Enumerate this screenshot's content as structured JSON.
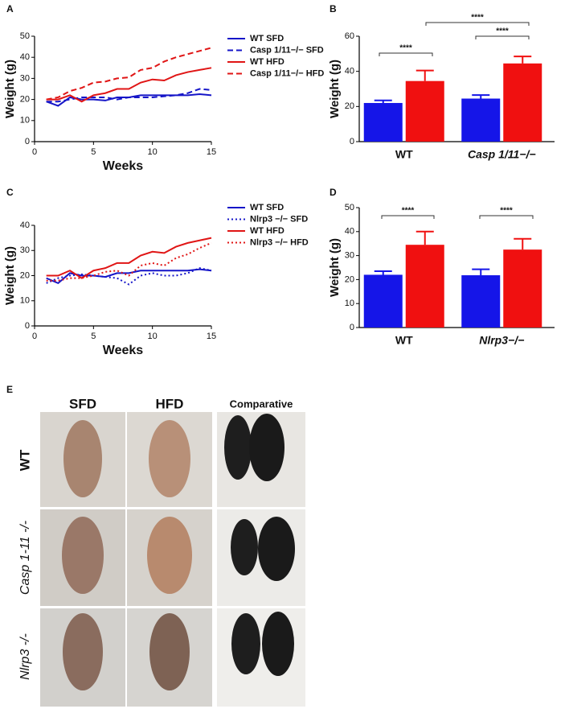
{
  "chart_data": [
    {
      "type": "line",
      "panel": "A",
      "ylabel": "Weight (g)",
      "xlabel": "Weeks",
      "x": [
        1,
        2,
        3,
        4,
        5,
        6,
        7,
        8,
        9,
        10,
        11,
        12,
        13,
        14,
        15
      ],
      "xlim": [
        0,
        15
      ],
      "xticks": [
        0,
        5,
        10,
        15
      ],
      "ylim": [
        0,
        50
      ],
      "yticks": [
        0,
        10,
        20,
        30,
        40,
        50
      ],
      "series": [
        {
          "name": "WT SFD",
          "color": "#1515c8",
          "dash": "solid",
          "values": [
            19,
            17,
            21,
            20,
            20,
            19.5,
            21,
            21,
            22,
            22,
            22,
            22,
            22,
            22.5,
            22
          ]
        },
        {
          "name": "Casp 1/11−/− SFD",
          "color": "#1515c8",
          "dash": "dashed",
          "values": [
            19,
            19,
            20,
            21,
            21,
            21,
            20,
            21,
            21,
            21,
            21.5,
            22,
            23,
            25,
            24.5
          ]
        },
        {
          "name": "WT HFD",
          "color": "#e01515",
          "dash": "solid",
          "values": [
            20,
            20,
            22,
            19,
            22,
            23,
            25,
            25,
            28,
            29.5,
            29,
            31.5,
            33,
            34,
            35
          ]
        },
        {
          "name": "Casp 1/11−/− HFD",
          "color": "#e01515",
          "dash": "dashed",
          "values": [
            20,
            21,
            24,
            25.5,
            28,
            28.5,
            30,
            30.5,
            34,
            35,
            38,
            40,
            41.5,
            43,
            44.5
          ]
        }
      ]
    },
    {
      "type": "bar",
      "panel": "B",
      "ylabel": "Weight (g)",
      "categories": [
        "WT",
        "Casp 1/11−/−"
      ],
      "ylim": [
        0,
        60
      ],
      "yticks": [
        0,
        20,
        40,
        60
      ],
      "series": [
        {
          "color": "#1515e8",
          "values": [
            22,
            24.5
          ],
          "errors": [
            1.5,
            2
          ]
        },
        {
          "color": "#f01010",
          "values": [
            34.5,
            44.5
          ],
          "errors": [
            6,
            4
          ]
        }
      ],
      "annotations": [
        "****",
        "****",
        "****"
      ]
    },
    {
      "type": "line",
      "panel": "C",
      "ylabel": "Weight (g)",
      "xlabel": "Weeks",
      "x": [
        1,
        2,
        3,
        4,
        5,
        6,
        7,
        8,
        9,
        10,
        11,
        12,
        13,
        14,
        15
      ],
      "xlim": [
        0,
        15
      ],
      "xticks": [
        0,
        5,
        10,
        15
      ],
      "ylim": [
        0,
        40
      ],
      "yticks": [
        0,
        10,
        20,
        30,
        40
      ],
      "series": [
        {
          "name": "WT SFD",
          "color": "#1515c8",
          "dash": "solid",
          "values": [
            19,
            17,
            21,
            20,
            20,
            19.5,
            21,
            21,
            22,
            22,
            22,
            22,
            22,
            22.5,
            22
          ]
        },
        {
          "name": "Nlrp3 −/− SFD",
          "color": "#1515c8",
          "dash": "dotted",
          "values": [
            17,
            19,
            20,
            20.5,
            20,
            19.5,
            19,
            16.5,
            20,
            21,
            20,
            20,
            21,
            23,
            22
          ]
        },
        {
          "name": "WT HFD",
          "color": "#e01515",
          "dash": "solid",
          "values": [
            20,
            20,
            22,
            19,
            22,
            23,
            25,
            25,
            28,
            29.5,
            29,
            31.5,
            33,
            34,
            35
          ]
        },
        {
          "name": "Nlrp3 −/− HFD",
          "color": "#e01515",
          "dash": "dotted",
          "values": [
            18,
            18,
            19,
            19,
            20,
            21.5,
            22,
            20,
            24,
            25,
            24,
            27,
            28.5,
            31,
            33
          ]
        }
      ]
    },
    {
      "type": "bar",
      "panel": "D",
      "ylabel": "Weight (g)",
      "categories": [
        "WT",
        "Nlrp3−/−"
      ],
      "ylim": [
        0,
        50
      ],
      "yticks": [
        0,
        10,
        20,
        30,
        40,
        50
      ],
      "series": [
        {
          "color": "#1515e8",
          "values": [
            22,
            21.8
          ],
          "errors": [
            1.5,
            2.5
          ]
        },
        {
          "color": "#f01010",
          "values": [
            34.5,
            32.5
          ],
          "errors": [
            5.5,
            4.5
          ]
        }
      ],
      "annotations": [
        "****",
        "****"
      ]
    }
  ],
  "figure_e": {
    "panel": "E",
    "column_headers": [
      "SFD",
      "HFD",
      "Comparative"
    ],
    "row_labels": [
      "WT",
      "Casp 1-11 -/-",
      "Nlrp3 -/-"
    ]
  }
}
